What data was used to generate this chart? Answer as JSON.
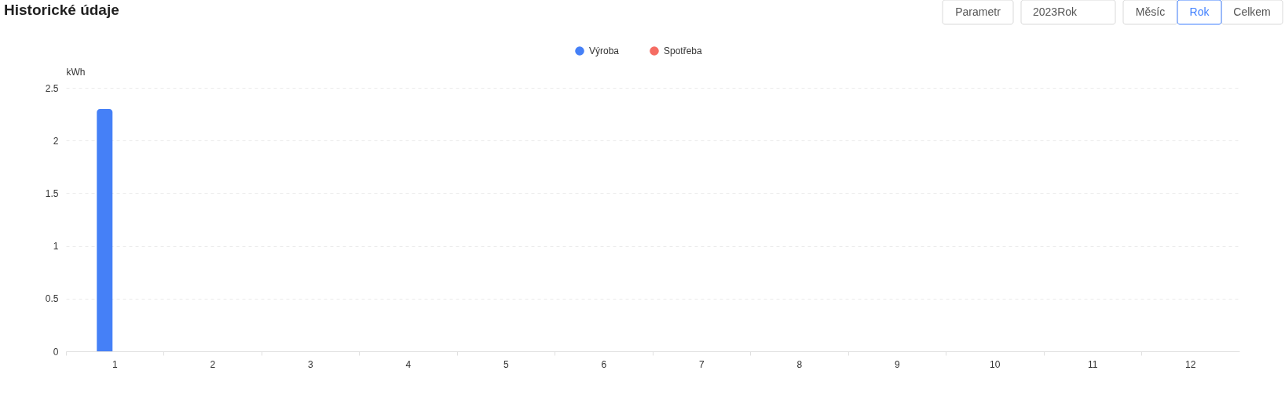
{
  "chart_data": {
    "type": "bar",
    "title": "Historické údaje",
    "ylabel": "kWh",
    "categories": [
      "1",
      "2",
      "3",
      "4",
      "5",
      "6",
      "7",
      "8",
      "9",
      "10",
      "11",
      "12"
    ],
    "series": [
      {
        "name": "Výroba",
        "color": "#4580f7",
        "values": [
          2.3,
          null,
          null,
          null,
          null,
          null,
          null,
          null,
          null,
          null,
          null,
          null
        ]
      },
      {
        "name": "Spotřeba",
        "color": "#f56c63",
        "values": [
          null,
          null,
          null,
          null,
          null,
          null,
          null,
          null,
          null,
          null,
          null,
          null
        ]
      }
    ],
    "ylim": [
      0,
      2.5
    ],
    "yticks": [
      0,
      0.5,
      1,
      1.5,
      2,
      2.5
    ],
    "grid": "y",
    "legend": "top",
    "annotations": [
      "Parametr",
      "2023Rok",
      "Měsíc",
      "Rok",
      "Celkem"
    ]
  }
}
